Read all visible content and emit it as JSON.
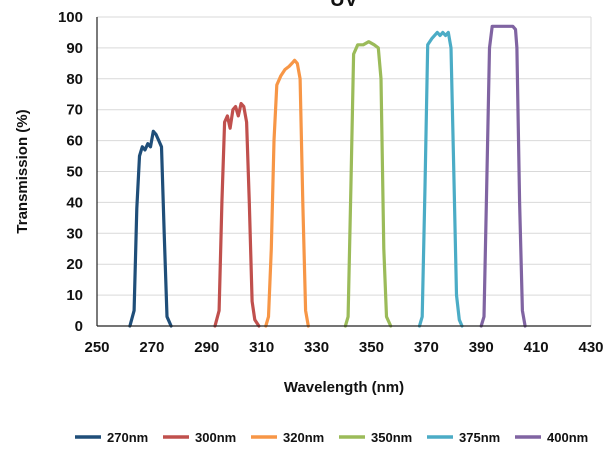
{
  "chart_data": {
    "type": "line",
    "title": "UV",
    "xlabel": "Wavelength (nm)",
    "ylabel": "Transmission (%)",
    "xlim": [
      250,
      430
    ],
    "ylim": [
      0,
      100
    ],
    "xticks": [
      250,
      270,
      290,
      310,
      330,
      350,
      370,
      390,
      410,
      430
    ],
    "yticks": [
      0,
      10,
      20,
      30,
      40,
      50,
      60,
      70,
      80,
      90,
      100
    ],
    "grid": "horizontal",
    "legend_position": "bottom",
    "series": [
      {
        "name": "270nm",
        "color": "#1f4e79",
        "x": [
          262,
          263.5,
          264.5,
          265.5,
          266.5,
          267.5,
          268.5,
          269.5,
          270.5,
          271.5,
          272.5,
          273.5,
          274.5,
          275.5,
          277
        ],
        "y": [
          0,
          5,
          38,
          55,
          58,
          57,
          59,
          58,
          63,
          62,
          60,
          58,
          30,
          3,
          0
        ]
      },
      {
        "name": "300nm",
        "color": "#c0504d",
        "x": [
          293,
          294.5,
          295.5,
          296.5,
          297.5,
          298.5,
          299.5,
          300.5,
          301.5,
          302.5,
          303.5,
          304.5,
          305.5,
          306.5,
          307.5,
          309
        ],
        "y": [
          0,
          5,
          40,
          66,
          68,
          64,
          70,
          71,
          68,
          72,
          71,
          66,
          40,
          8,
          2,
          0
        ]
      },
      {
        "name": "320nm",
        "color": "#f79646",
        "x": [
          311.5,
          312.5,
          313.5,
          314.5,
          315.5,
          317,
          318.5,
          320,
          321,
          322,
          323,
          324,
          325,
          326,
          327
        ],
        "y": [
          0,
          3,
          25,
          60,
          78,
          81,
          83,
          84,
          85,
          86,
          85,
          80,
          40,
          5,
          0
        ]
      },
      {
        "name": "350nm",
        "color": "#9bbb59",
        "x": [
          340.5,
          341.5,
          342.5,
          343.5,
          345,
          347,
          349,
          351,
          352.5,
          353.5,
          354.5,
          355.5,
          357
        ],
        "y": [
          0,
          3,
          45,
          88,
          91,
          91,
          92,
          91,
          90,
          80,
          25,
          3,
          0
        ]
      },
      {
        "name": "375nm",
        "color": "#4bacc6",
        "x": [
          367.5,
          368.5,
          369.5,
          370.5,
          372,
          374,
          375,
          376,
          377,
          378,
          379,
          380,
          381,
          382,
          383
        ],
        "y": [
          0,
          3,
          45,
          91,
          93,
          95,
          94,
          95,
          94,
          95,
          90,
          50,
          10,
          2,
          0
        ]
      },
      {
        "name": "400nm",
        "color": "#8064a2",
        "x": [
          390,
          391,
          392,
          393,
          394,
          396,
          398,
          400,
          401.5,
          402.5,
          403,
          404,
          405,
          406
        ],
        "y": [
          0,
          3,
          45,
          90,
          97,
          97,
          97,
          97,
          97,
          96,
          90,
          40,
          5,
          0
        ]
      }
    ]
  }
}
